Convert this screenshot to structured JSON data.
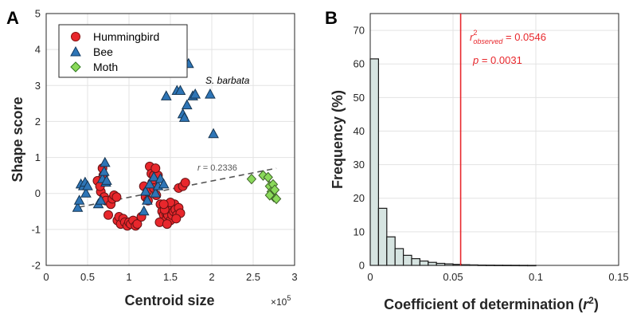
{
  "chart_data": [
    {
      "type": "scatter",
      "panel_label": "A",
      "xlabel": "Centroid size",
      "ylabel": "Shape score",
      "x_multiplier": "×10",
      "x_multiplier_exp": "5",
      "xlim": [
        0,
        3
      ],
      "ylim": [
        -2,
        5
      ],
      "xticks": [
        "0",
        "0.5",
        "1",
        "1.5",
        "2",
        "2.5",
        "3"
      ],
      "yticks": [
        "-2",
        "-1",
        "0",
        "1",
        "2",
        "3",
        "4",
        "5"
      ],
      "grid": true,
      "legend_position": "top-left",
      "annotations": {
        "species_label": "S. barbata",
        "r_label": "r",
        "r_value": " = 0.2336"
      },
      "trendline": {
        "x0": 0.4,
        "y0": -0.38,
        "x1": 2.78,
        "y1": 0.7
      },
      "series": [
        {
          "name": "Hummingbird",
          "marker": "circle",
          "color": "#e8272c",
          "points": [
            [
              0.62,
              0.35
            ],
            [
              0.66,
              0.05
            ],
            [
              0.65,
              0.2
            ],
            [
              0.69,
              0.5
            ],
            [
              0.68,
              0.7
            ],
            [
              0.7,
              -0.1
            ],
            [
              0.72,
              -0.2
            ],
            [
              0.75,
              -0.6
            ],
            [
              0.78,
              -0.3
            ],
            [
              0.8,
              -0.15
            ],
            [
              0.82,
              -0.05
            ],
            [
              0.85,
              -0.1
            ],
            [
              0.86,
              -0.75
            ],
            [
              0.88,
              -0.65
            ],
            [
              0.9,
              -0.85
            ],
            [
              0.93,
              -0.7
            ],
            [
              0.95,
              -0.8
            ],
            [
              0.98,
              -0.9
            ],
            [
              1.0,
              -0.8
            ],
            [
              1.02,
              -0.85
            ],
            [
              1.05,
              -0.75
            ],
            [
              1.08,
              -0.9
            ],
            [
              1.1,
              -0.85
            ],
            [
              1.15,
              -0.65
            ],
            [
              1.18,
              0.2
            ],
            [
              1.2,
              -0.1
            ],
            [
              1.22,
              0.05
            ],
            [
              1.23,
              -0.2
            ],
            [
              1.25,
              0.75
            ],
            [
              1.27,
              0.55
            ],
            [
              1.28,
              0.3
            ],
            [
              1.3,
              0.5
            ],
            [
              1.3,
              0.15
            ],
            [
              1.33,
              -0.05
            ],
            [
              1.35,
              0.5
            ],
            [
              1.32,
              0.7
            ],
            [
              1.38,
              -0.3
            ],
            [
              1.4,
              -0.5
            ],
            [
              1.42,
              -0.6
            ],
            [
              1.44,
              -0.75
            ],
            [
              1.45,
              -0.55
            ],
            [
              1.47,
              -0.6
            ],
            [
              1.48,
              -0.4
            ],
            [
              1.5,
              -0.75
            ],
            [
              1.52,
              -0.6
            ],
            [
              1.54,
              -0.5
            ],
            [
              1.55,
              -0.3
            ],
            [
              1.56,
              -0.45
            ],
            [
              1.58,
              -0.6
            ],
            [
              1.6,
              -0.4
            ],
            [
              1.62,
              -0.55
            ],
            [
              1.6,
              0.15
            ],
            [
              1.65,
              0.2
            ],
            [
              1.68,
              0.3
            ],
            [
              1.43,
              -0.45
            ],
            [
              1.5,
              -0.25
            ],
            [
              1.57,
              -0.7
            ],
            [
              1.37,
              -0.8
            ],
            [
              1.42,
              -0.3
            ],
            [
              1.46,
              -0.85
            ]
          ]
        },
        {
          "name": "Bee",
          "marker": "triangle",
          "color": "#2e75b6",
          "points": [
            [
              0.38,
              -0.4
            ],
            [
              0.4,
              -0.2
            ],
            [
              0.42,
              0.25
            ],
            [
              0.45,
              0.2
            ],
            [
              0.47,
              0.3
            ],
            [
              0.48,
              0.0
            ],
            [
              0.5,
              0.2
            ],
            [
              0.63,
              -0.3
            ],
            [
              0.66,
              -0.2
            ],
            [
              0.68,
              0.4
            ],
            [
              0.7,
              0.6
            ],
            [
              0.71,
              0.85
            ],
            [
              0.72,
              0.3
            ],
            [
              0.73,
              0.35
            ],
            [
              1.18,
              -0.5
            ],
            [
              1.2,
              0.05
            ],
            [
              1.22,
              -0.2
            ],
            [
              1.25,
              0.25
            ],
            [
              1.3,
              0.45
            ],
            [
              1.32,
              0.0
            ],
            [
              1.35,
              0.2
            ],
            [
              1.38,
              0.4
            ],
            [
              1.42,
              0.25
            ],
            [
              1.45,
              2.7
            ],
            [
              1.53,
              3.85
            ],
            [
              1.58,
              2.85
            ],
            [
              1.62,
              2.85
            ],
            [
              1.65,
              2.2
            ],
            [
              1.67,
              2.1
            ],
            [
              1.7,
              2.45
            ],
            [
              1.72,
              3.6
            ],
            [
              1.77,
              2.7
            ],
            [
              1.8,
              2.75
            ],
            [
              1.98,
              2.75
            ],
            [
              2.02,
              1.65
            ]
          ]
        },
        {
          "name": "Moth",
          "marker": "diamond",
          "color": "#8ad95a",
          "points": [
            [
              2.48,
              0.4
            ],
            [
              2.62,
              0.5
            ],
            [
              2.68,
              0.45
            ],
            [
              2.7,
              0.2
            ],
            [
              2.72,
              0.05
            ],
            [
              2.73,
              -0.05
            ],
            [
              2.75,
              -0.1
            ],
            [
              2.74,
              0.25
            ],
            [
              2.76,
              0.1
            ],
            [
              2.78,
              -0.15
            ],
            [
              2.7,
              -0.05
            ]
          ]
        }
      ]
    },
    {
      "type": "bar",
      "panel_label": "B",
      "xlabel": "Coefficient of determination (",
      "xlabel_symbol": "r",
      "xlabel_exp": "2",
      "xlabel_close": ")",
      "ylabel": "Frequency (%)",
      "xlim": [
        0,
        0.15
      ],
      "ylim": [
        0,
        75
      ],
      "xticks": [
        "0",
        "0.05",
        "0.1",
        "0.15"
      ],
      "yticks": [
        "0",
        "10",
        "20",
        "30",
        "40",
        "50",
        "60",
        "70"
      ],
      "grid": true,
      "bin_width": 0.005,
      "bin_start": 0,
      "values": [
        61.5,
        17,
        8.5,
        5,
        3,
        2,
        1.3,
        0.9,
        0.6,
        0.45,
        0.3,
        0.2,
        0.15,
        0.1,
        0.08,
        0.06,
        0.05,
        0.04,
        0.03,
        0.02
      ],
      "bar_color": "#d6e4e1",
      "observed_line": {
        "x": 0.0546,
        "color": "#e8272c"
      },
      "annotations": {
        "r2_symbol": "r",
        "r2_exp": "2",
        "r2_sub": "observed",
        "r2_value": " = 0.0546",
        "p_text": "p",
        "p_value": " = 0.0031"
      }
    }
  ]
}
